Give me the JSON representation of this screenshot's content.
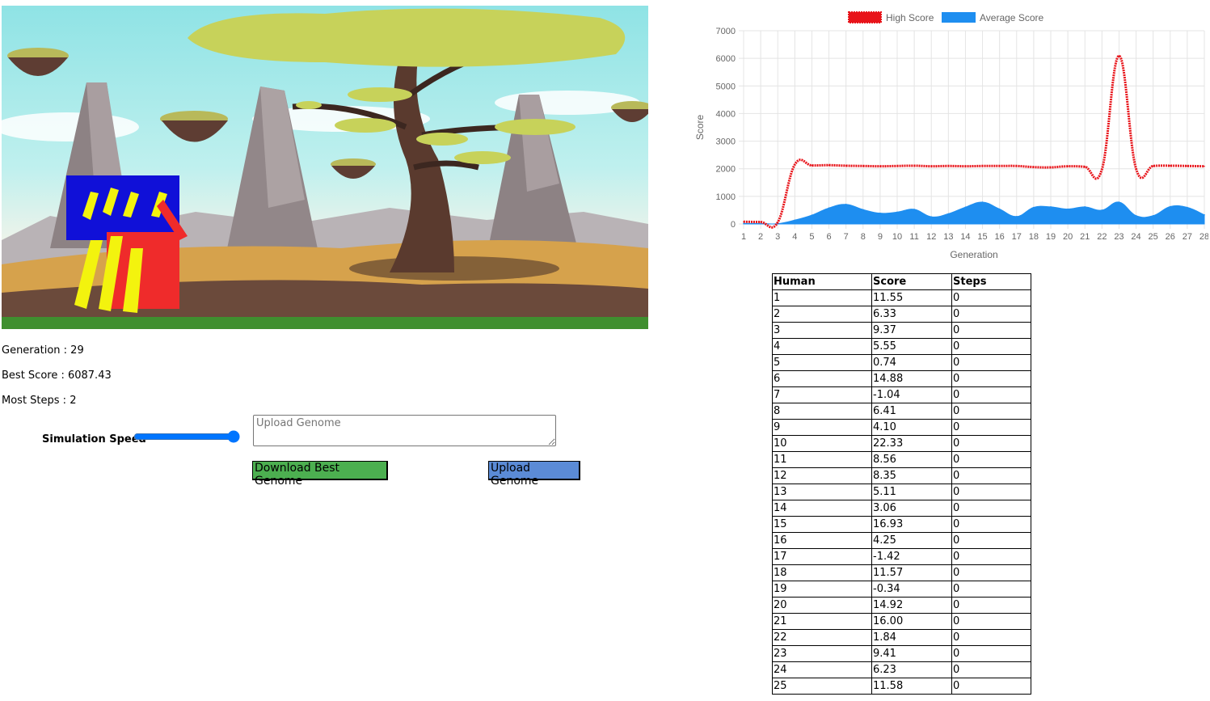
{
  "stats": {
    "generation": "Generation : 29",
    "best_score": "Best Score : 6087.43",
    "most_steps": "Most Steps : 2"
  },
  "controls": {
    "speed_label": "Simulation Speed",
    "speed_value": 1.0,
    "upload_placeholder": "Upload Genome",
    "download_label": "Download Best Genome",
    "upload_label": "Upload Genome"
  },
  "colors": {
    "high_score": "#e8141a",
    "average_score": "#1e8ef0",
    "download_button": "#4caf50",
    "upload_button": "#5b8bd6"
  },
  "chart_data": {
    "type": "line",
    "xlabel": "Generation",
    "ylabel": "Score",
    "ylim": [
      0,
      7000
    ],
    "yticks": [
      0,
      1000,
      2000,
      3000,
      4000,
      5000,
      6000,
      7000
    ],
    "categories": [
      "1",
      "2",
      "3",
      "4",
      "5",
      "6",
      "7",
      "8",
      "9",
      "10",
      "11",
      "12",
      "13",
      "14",
      "15",
      "16",
      "17",
      "18",
      "19",
      "20",
      "21",
      "22",
      "23",
      "24",
      "25",
      "26",
      "27",
      "28"
    ],
    "legend_position": "top",
    "grid": true,
    "series": [
      {
        "name": "High Score",
        "style": "dotted-line",
        "values": [
          80,
          70,
          60,
          2150,
          2120,
          2130,
          2110,
          2100,
          2090,
          2100,
          2110,
          2090,
          2100,
          2090,
          2100,
          2100,
          2100,
          2060,
          2050,
          2090,
          2070,
          1980,
          6087,
          2000,
          2100,
          2110,
          2100,
          2090
        ]
      },
      {
        "name": "Average Score",
        "style": "area",
        "values": [
          20,
          15,
          10,
          140,
          320,
          580,
          710,
          520,
          390,
          430,
          530,
          260,
          370,
          610,
          790,
          540,
          270,
          600,
          620,
          540,
          620,
          500,
          790,
          300,
          300,
          630,
          600,
          330
        ]
      }
    ]
  },
  "table": {
    "headers": [
      "Human",
      "Score",
      "Steps"
    ],
    "rows": [
      [
        "1",
        "11.55",
        "0"
      ],
      [
        "2",
        "6.33",
        "0"
      ],
      [
        "3",
        "9.37",
        "0"
      ],
      [
        "4",
        "5.55",
        "0"
      ],
      [
        "5",
        "0.74",
        "0"
      ],
      [
        "6",
        "14.88",
        "0"
      ],
      [
        "7",
        "-1.04",
        "0"
      ],
      [
        "8",
        "6.41",
        "0"
      ],
      [
        "9",
        "4.10",
        "0"
      ],
      [
        "10",
        "22.33",
        "0"
      ],
      [
        "11",
        "8.56",
        "0"
      ],
      [
        "12",
        "8.35",
        "0"
      ],
      [
        "13",
        "5.11",
        "0"
      ],
      [
        "14",
        "3.06",
        "0"
      ],
      [
        "15",
        "16.93",
        "0"
      ],
      [
        "16",
        "4.25",
        "0"
      ],
      [
        "17",
        "-1.42",
        "0"
      ],
      [
        "18",
        "11.57",
        "0"
      ],
      [
        "19",
        "-0.34",
        "0"
      ],
      [
        "20",
        "14.92",
        "0"
      ],
      [
        "21",
        "16.00",
        "0"
      ],
      [
        "22",
        "1.84",
        "0"
      ],
      [
        "23",
        "9.41",
        "0"
      ],
      [
        "24",
        "6.23",
        "0"
      ],
      [
        "25",
        "11.58",
        "0"
      ]
    ]
  }
}
